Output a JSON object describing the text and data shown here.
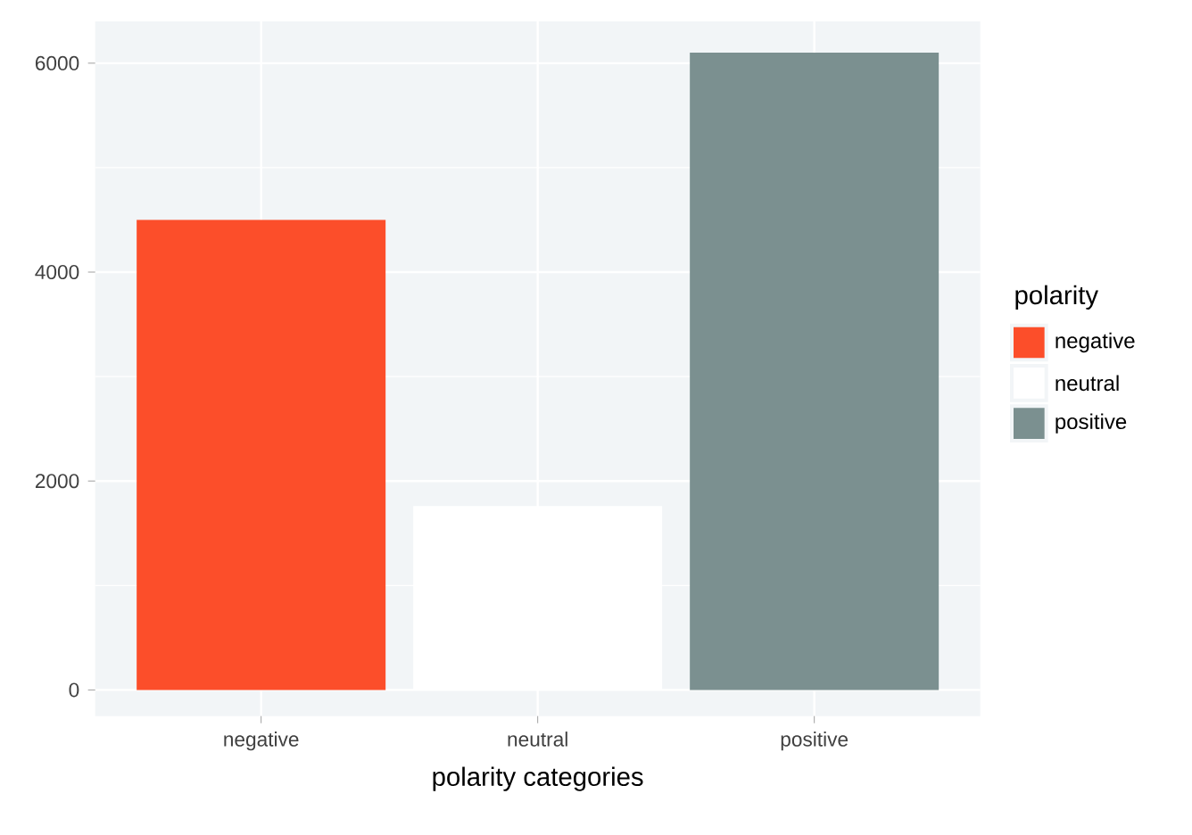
{
  "chart_data": {
    "type": "bar",
    "xlabel": "polarity categories",
    "legend_title": "polarity",
    "categories": [
      "negative",
      "neutral",
      "positive"
    ],
    "series": [
      {
        "name": "negative",
        "color": "#fc4e2a",
        "values": [
          4500,
          null,
          null
        ]
      },
      {
        "name": "neutral",
        "color": "#ffffff",
        "values": [
          null,
          1760,
          null
        ]
      },
      {
        "name": "positive",
        "color": "#7b9090",
        "values": [
          null,
          null,
          6100
        ]
      }
    ],
    "ylim": [
      -250,
      6400
    ],
    "yticks": [
      0,
      2000,
      4000,
      6000
    ],
    "grid": true,
    "legend": "right"
  }
}
